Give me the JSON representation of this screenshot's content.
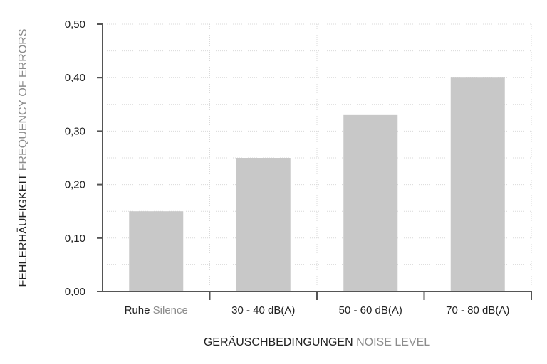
{
  "chart_data": {
    "type": "bar",
    "categories": [
      {
        "primary": "Ruhe",
        "secondary": "Silence"
      },
      {
        "primary": "30 - 40 dB(A)",
        "secondary": ""
      },
      {
        "primary": "50 - 60 dB(A)",
        "secondary": ""
      },
      {
        "primary": "70 - 80 dB(A)",
        "secondary": ""
      }
    ],
    "values": [
      0.15,
      0.25,
      0.33,
      0.4
    ],
    "xlabel": {
      "primary": "GERÄUSCHBEDINGUNGEN",
      "secondary": "NOISE LEVEL"
    },
    "ylabel": {
      "primary": "FEHLERHÄUFIGKEIT",
      "secondary": "FREQUENCY OF ERRORS"
    },
    "ylim": [
      0,
      0.5
    ],
    "yticks": [
      "0,00",
      "0,10",
      "0,20",
      "0,30",
      "0,40",
      "0,50"
    ],
    "ytick_values": [
      0,
      0.1,
      0.2,
      0.3,
      0.4,
      0.5
    ],
    "grid": true,
    "colors": {
      "bar": "#c8c8c8",
      "axis": "#555555",
      "grid": "#d9d9d9",
      "secondary_text": "#8c8c8c"
    }
  }
}
